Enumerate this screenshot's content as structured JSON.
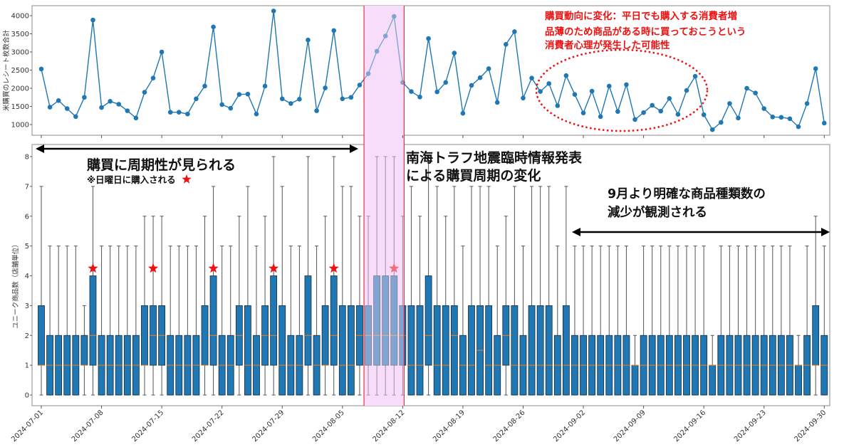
{
  "chart_data": [
    {
      "type": "line",
      "ylabel": "米購買のレシート枚数合計",
      "x_range": [
        "2024-07-01",
        "2024-09-30"
      ],
      "x_frequency": "daily",
      "ylim": [
        700,
        4300
      ],
      "yticks": [
        1000,
        1500,
        2000,
        2500,
        3000,
        3500,
        4000
      ],
      "grid": false,
      "color": "#1f77b4",
      "values": [
        2530,
        1480,
        1660,
        1440,
        1220,
        1750,
        3880,
        1470,
        1640,
        1560,
        1380,
        1180,
        1890,
        2280,
        3000,
        1340,
        1340,
        1290,
        1710,
        2060,
        3690,
        1550,
        1450,
        1830,
        1840,
        1290,
        2060,
        4130,
        1710,
        1580,
        1700,
        3330,
        1380,
        2010,
        3590,
        1710,
        1750,
        2090,
        2400,
        3020,
        3440,
        3980,
        2160,
        1910,
        1760,
        3370,
        1900,
        2160,
        2970,
        1310,
        2080,
        2290,
        2540,
        1610,
        3210,
        3560,
        1730,
        2280,
        1910,
        2130,
        1520,
        2350,
        1830,
        1320,
        1920,
        1220,
        2060,
        1360,
        2100,
        1140,
        1330,
        1530,
        1370,
        1720,
        1280,
        1940,
        2330,
        1270,
        860,
        1060,
        1580,
        1180,
        2000,
        1870,
        1440,
        1210,
        1200,
        1160,
        940,
        1580,
        2540,
        1040
      ],
      "annotation": {
        "lines": [
          "購買動向に変化：平日でも購入する消費者増",
          "品薄のため商品がある時に買っておこうという",
          "消費者心理が発生した可能性"
        ],
        "color": "#ee1111",
        "highlight": {
          "shape": "dotted-ellipse",
          "from": "2024-08-27",
          "to": "2024-09-15"
        }
      }
    },
    {
      "type": "box",
      "ylabel": "ユニーク商品数（店舗単位）",
      "x_range": [
        "2024-07-01",
        "2024-09-30"
      ],
      "x_frequency": "daily",
      "ylim": [
        -0.3,
        8.3
      ],
      "yticks": [
        0,
        1,
        2,
        3,
        4,
        5,
        6,
        7,
        8
      ],
      "x_tick_labels": [
        "2024-07-01",
        "2024-07-08",
        "2024-07-15",
        "2024-07-22",
        "2024-07-29",
        "2024-08-05",
        "2024-08-12",
        "2024-08-19",
        "2024-08-26",
        "2024-09-02",
        "2024-09-09",
        "2024-09-16",
        "2024-09-23",
        "2024-09-30"
      ],
      "box_fields": [
        "min",
        "q1",
        "median",
        "q3",
        "max"
      ],
      "box_color": "#1f77b4",
      "median_color": "#ff7f0e",
      "boxes": [
        [
          0,
          1,
          1,
          3,
          7
        ],
        [
          0,
          0,
          1,
          2,
          5
        ],
        [
          0,
          0,
          1,
          2,
          5
        ],
        [
          0,
          0,
          1,
          2,
          5
        ],
        [
          0,
          0,
          1,
          2,
          5
        ],
        [
          0,
          1,
          1,
          2,
          3
        ],
        [
          0,
          1,
          2,
          4,
          7
        ],
        [
          0,
          0,
          1,
          2,
          5
        ],
        [
          0,
          0,
          1,
          2,
          5
        ],
        [
          0,
          0,
          1,
          2,
          5
        ],
        [
          0,
          0,
          1,
          2,
          5
        ],
        [
          0,
          0,
          1,
          2,
          5
        ],
        [
          0,
          1,
          1,
          3,
          6
        ],
        [
          0,
          1,
          2,
          3,
          6
        ],
        [
          0,
          1,
          2,
          3,
          6
        ],
        [
          0,
          0,
          1,
          2,
          5
        ],
        [
          0,
          0,
          1,
          2,
          5
        ],
        [
          0,
          0,
          1,
          2,
          5
        ],
        [
          0,
          0,
          1,
          2,
          5
        ],
        [
          0,
          1,
          1,
          3,
          6
        ],
        [
          0,
          1,
          2,
          4,
          7
        ],
        [
          0,
          0,
          1,
          2,
          5
        ],
        [
          0,
          0,
          1,
          2,
          5
        ],
        [
          0,
          1,
          2,
          3,
          6
        ],
        [
          0,
          0,
          1,
          3,
          7
        ],
        [
          0,
          0,
          1,
          2,
          5
        ],
        [
          0,
          1,
          2,
          3,
          6
        ],
        [
          0,
          1,
          2,
          4,
          8
        ],
        [
          0,
          0,
          1,
          3,
          7
        ],
        [
          0,
          0,
          1,
          2,
          5
        ],
        [
          0,
          0,
          1,
          2,
          5
        ],
        [
          0,
          1,
          2,
          4,
          8
        ],
        [
          0,
          0,
          1,
          2,
          5
        ],
        [
          0,
          1,
          1,
          3,
          6
        ],
        [
          0,
          1,
          2,
          4,
          8
        ],
        [
          0,
          0,
          1,
          3,
          7
        ],
        [
          0,
          0,
          1,
          3,
          7
        ],
        [
          0,
          1,
          2,
          3,
          6
        ],
        [
          0,
          1,
          2,
          3,
          6
        ],
        [
          0,
          1,
          2,
          4,
          8
        ],
        [
          0,
          1,
          2,
          4,
          8
        ],
        [
          0,
          1,
          2,
          4,
          8
        ],
        [
          0,
          1,
          2,
          3,
          6
        ],
        [
          0,
          0,
          1,
          3,
          7
        ],
        [
          0,
          0,
          1,
          3,
          6
        ],
        [
          0,
          1,
          2,
          4,
          8
        ],
        [
          0,
          0,
          1,
          3,
          7
        ],
        [
          0,
          0,
          1,
          3,
          6
        ],
        [
          0,
          0,
          2,
          3,
          7
        ],
        [
          0,
          0,
          1,
          2,
          5
        ],
        [
          0,
          0,
          1,
          3,
          7
        ],
        [
          0,
          0,
          1.5,
          3,
          7
        ],
        [
          0,
          0,
          1,
          3,
          7
        ],
        [
          0,
          0,
          1,
          2,
          5
        ],
        [
          0,
          1,
          2,
          3,
          6
        ],
        [
          0,
          0,
          1,
          3,
          7
        ],
        [
          0,
          0,
          1,
          2,
          5
        ],
        [
          0,
          0,
          1,
          3,
          7
        ],
        [
          0,
          0,
          1,
          3,
          7
        ],
        [
          0,
          0,
          1,
          3,
          7
        ],
        [
          0,
          0,
          1,
          2,
          5
        ],
        [
          0,
          0,
          1,
          3,
          7
        ],
        [
          0,
          0,
          1,
          2,
          5
        ],
        [
          0,
          0,
          1,
          2,
          5
        ],
        [
          0,
          0,
          1,
          2,
          5
        ],
        [
          0,
          0,
          1,
          2,
          5
        ],
        [
          0,
          0,
          1,
          2,
          5
        ],
        [
          0,
          0,
          1,
          2,
          5
        ],
        [
          0,
          0,
          1,
          2,
          5
        ],
        [
          0,
          0,
          1,
          1,
          2
        ],
        [
          0,
          0,
          1,
          2,
          5
        ],
        [
          0,
          0,
          1,
          2,
          5
        ],
        [
          0,
          0,
          1,
          2,
          5
        ],
        [
          0,
          0,
          1,
          2,
          5
        ],
        [
          0,
          0,
          1,
          2,
          5
        ],
        [
          0,
          0,
          1,
          2,
          5
        ],
        [
          0,
          0,
          1,
          2,
          5
        ],
        [
          0,
          0,
          1,
          2,
          5
        ],
        [
          0,
          0,
          1,
          1,
          2
        ],
        [
          0,
          0,
          1,
          2,
          5
        ],
        [
          0,
          0,
          1,
          2,
          5
        ],
        [
          0,
          0,
          1,
          2,
          5
        ],
        [
          0,
          0,
          1,
          2,
          5
        ],
        [
          0,
          0,
          1,
          2,
          5
        ],
        [
          0,
          0,
          1,
          2,
          5
        ],
        [
          0,
          0,
          1,
          2,
          5
        ],
        [
          0,
          0,
          1,
          2,
          5
        ],
        [
          0,
          0,
          1,
          2,
          5
        ],
        [
          0,
          0,
          1,
          1,
          2
        ],
        [
          0,
          0,
          1,
          2,
          5
        ],
        [
          0,
          1,
          1,
          3,
          6
        ],
        [
          0,
          0,
          1,
          2,
          5
        ]
      ],
      "sunday_star_dates": [
        "2024-07-07",
        "2024-07-14",
        "2024-07-21",
        "2024-07-28",
        "2024-08-04",
        "2024-08-11"
      ],
      "star_color": "#ee1111",
      "annotations": {
        "periodicity": {
          "title": "購買に周期性が見られる",
          "note": "※日曜日に購入される",
          "arrow": {
            "from": "2024-07-01",
            "to": "2024-08-07"
          }
        },
        "earthquake": {
          "lines": [
            "南海トラフ地震臨時情報発表",
            "による購買周期の変化"
          ]
        },
        "september": {
          "lines": [
            "9月より明確な商品種類数の",
            "減少が観測される"
          ],
          "arrow": {
            "from": "2024-08-31",
            "to": "2024-09-30"
          }
        }
      }
    }
  ],
  "highlight_period": {
    "from": "2024-08-08",
    "to": "2024-08-12",
    "fill": "#f7ddf9",
    "border": "#e01020"
  }
}
